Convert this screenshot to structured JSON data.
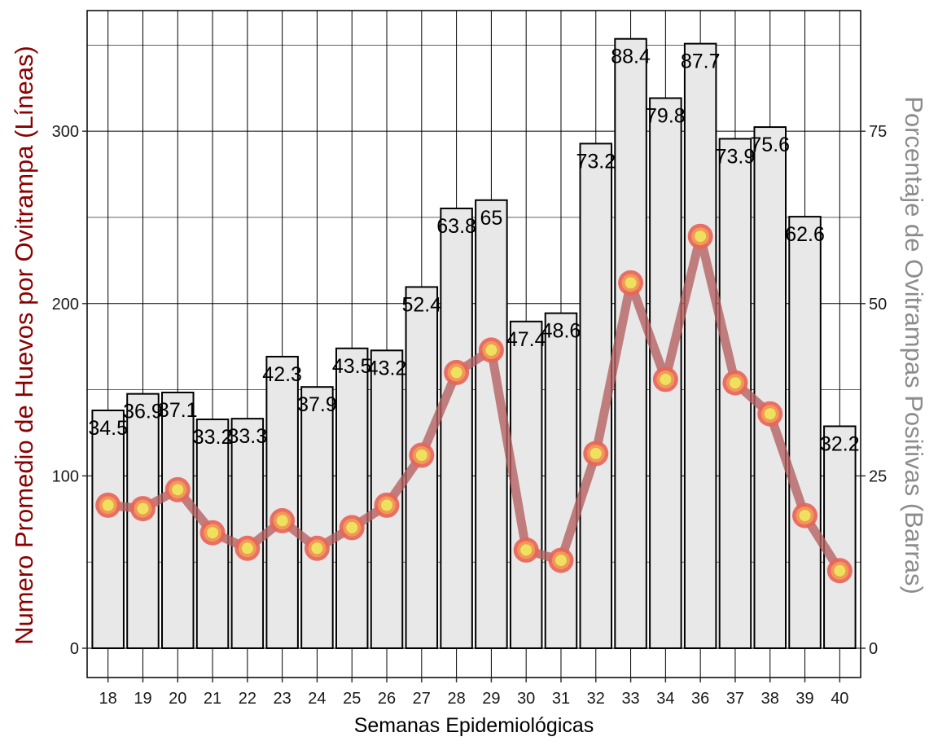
{
  "chart_data": {
    "type": "bar",
    "categories": [
      "18",
      "19",
      "20",
      "21",
      "22",
      "23",
      "24",
      "25",
      "26",
      "27",
      "28",
      "29",
      "30",
      "31",
      "32",
      "33",
      "34",
      "36",
      "37",
      "38",
      "39",
      "40"
    ],
    "series": [
      {
        "type": "bar",
        "axis": "right",
        "values": [
          34.5,
          36.9,
          37.1,
          33.2,
          33.3,
          42.3,
          37.9,
          43.5,
          43.2,
          52.4,
          63.8,
          65,
          47.4,
          48.6,
          73.2,
          88.4,
          79.8,
          87.7,
          73.9,
          75.6,
          62.6,
          32.2
        ],
        "labels": [
          "34.5",
          "36.9",
          "37.1",
          "33.2",
          "33.3",
          "42.3",
          "37.9",
          "43.5",
          "43.2",
          "52.4",
          "63.8",
          "65",
          "47.4",
          "48.6",
          "73.2",
          "88.4",
          "79.8",
          "87.7",
          "73.9",
          "75.6",
          "62.6",
          "32.2"
        ]
      },
      {
        "type": "line",
        "axis": "left",
        "values": [
          83,
          81,
          92,
          67,
          58,
          74,
          58,
          70,
          83,
          112,
          160,
          173,
          57,
          51,
          113,
          212,
          156,
          239,
          154,
          136,
          77,
          45
        ]
      }
    ],
    "xlabel": "Semanas Epidemiológicas",
    "ylabel": "Numero Promedio de Huevos por Ovitrampa (Líneas)",
    "ylabel_right": "Porcentaje de Ovitrampas Positivas (Barras)",
    "ylim": [
      -17,
      370
    ],
    "ylim_right": [
      -4.25,
      92.5
    ],
    "yticks": [
      0,
      100,
      200,
      300
    ],
    "yticks_right": [
      0,
      25,
      50,
      75
    ],
    "grid": true,
    "colors": {
      "bar_fill": "#e8e8e8",
      "bar_stroke": "#000000",
      "line": "#b55f5f",
      "marker_outer": "#e8645a",
      "marker_inner": "#f0e060",
      "ylabel_left": "#8b0000",
      "ylabel_right": "#8c8c8c"
    }
  }
}
